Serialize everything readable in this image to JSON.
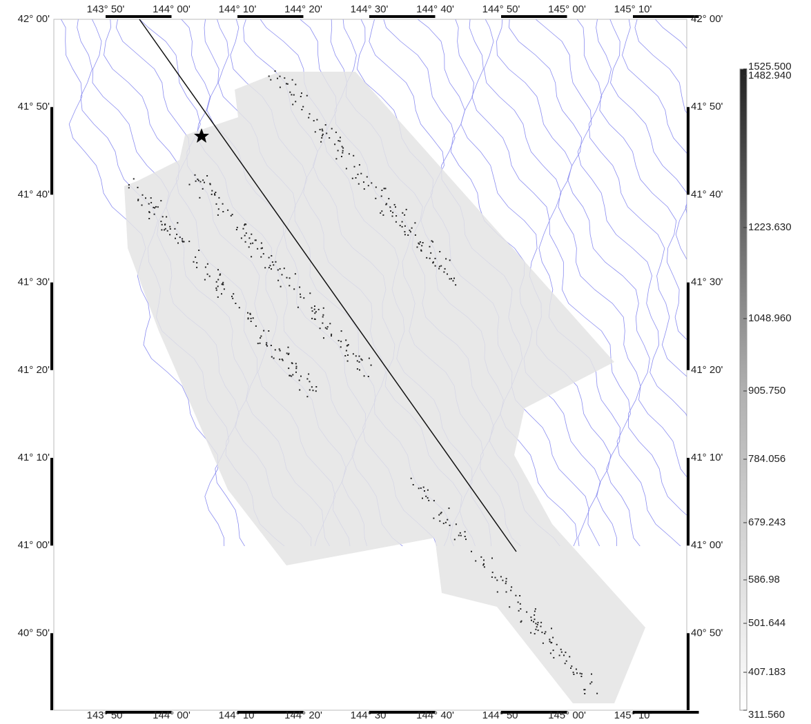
{
  "map": {
    "longitude_labels": [
      "143° 50'",
      "144° 00'",
      "144° 10'",
      "144° 20'",
      "144° 30'",
      "144° 40'",
      "144° 50'",
      "145° 00'",
      "145° 10'"
    ],
    "latitude_labels": [
      "42° 00'",
      "41° 50'",
      "41° 40'",
      "41° 30'",
      "41° 20'",
      "41° 10'",
      "41° 00'",
      "40° 50'"
    ],
    "colorbar": {
      "ticks": [
        {
          "value": 1525.5,
          "label": "1525.500"
        },
        {
          "value": 1482.94,
          "label": "1482.940"
        },
        {
          "value": 1223.63,
          "label": "1223.630"
        },
        {
          "value": 1048.96,
          "label": "1048.960"
        },
        {
          "value": 905.75,
          "label": "905.750"
        },
        784.056,
        679.243,
        586.98,
        501.644,
        407.183,
        {
          "value": 311.56,
          "label": "311.560"
        }
      ]
    }
  }
}
